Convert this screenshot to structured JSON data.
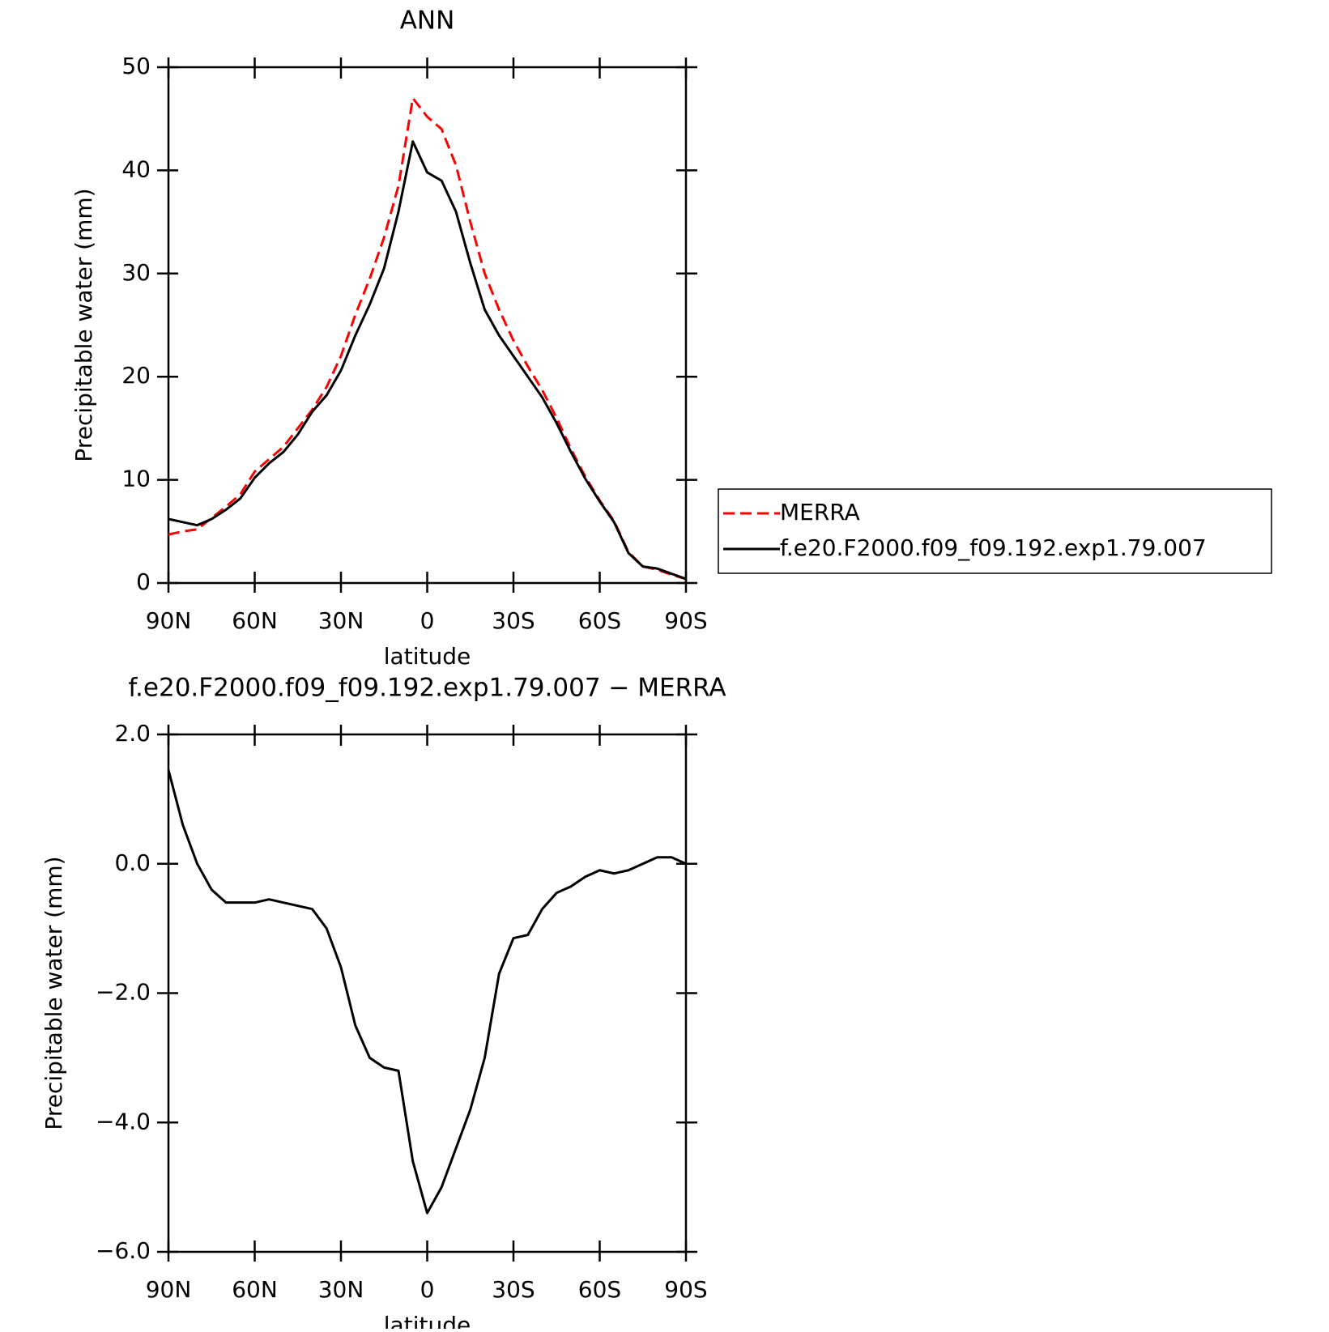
{
  "chart_data": [
    {
      "type": "line",
      "title": "ANN",
      "xlabel": "latitude",
      "ylabel": "Precipitable water (mm)",
      "x": [
        90,
        85,
        80,
        75,
        70,
        65,
        60,
        55,
        50,
        45,
        40,
        35,
        30,
        25,
        20,
        15,
        10,
        5,
        0,
        -5,
        -10,
        -15,
        -20,
        -25,
        -30,
        -35,
        -40,
        -45,
        -50,
        -55,
        -60,
        -65,
        -70,
        -75,
        -80,
        -85,
        -90
      ],
      "xlim": [
        90,
        -90
      ],
      "xticks": [
        {
          "value": 90,
          "label": "90N"
        },
        {
          "value": 60,
          "label": "60N"
        },
        {
          "value": 30,
          "label": "30N"
        },
        0,
        {
          "value": -30,
          "label": "30S"
        },
        {
          "value": -60,
          "label": "60S"
        },
        {
          "value": -90,
          "label": "90S"
        }
      ],
      "ylim": [
        0,
        50
      ],
      "yticks": [
        0,
        10,
        20,
        30,
        40,
        50
      ],
      "legend": "right",
      "series": [
        {
          "name": "MERRA",
          "color": "#ff0000",
          "dashed": true,
          "values": [
            4.7,
            5.0,
            5.2,
            6.3,
            7.4,
            8.6,
            10.8,
            12,
            13.2,
            15,
            16.8,
            19,
            22,
            26,
            29.5,
            33.5,
            38.5,
            47,
            45.2,
            44,
            40.5,
            35,
            30,
            26.5,
            23.5,
            21,
            18.7,
            16,
            13,
            10.3,
            8,
            6,
            3,
            1.6,
            1.3,
            0.8,
            0.4
          ]
        },
        {
          "name": "f.e20.F2000.f09_f09.192.exp1.79.007",
          "color": "#000000",
          "dashed": false,
          "values": [
            6.2,
            5.9,
            5.6,
            6.2,
            7.1,
            8.2,
            10.2,
            11.6,
            12.7,
            14.4,
            16.6,
            18.2,
            20.6,
            24,
            27,
            30.5,
            36,
            42.8,
            39.8,
            39,
            36,
            31,
            26.5,
            24,
            22,
            20,
            18,
            15.5,
            12.7,
            10.1,
            7.9,
            5.9,
            2.9,
            1.6,
            1.4,
            0.9,
            0.4
          ]
        }
      ]
    },
    {
      "type": "line",
      "title": "f.e20.F2000.f09_f09.192.exp1.79.007 − MERRA",
      "xlabel": "latitude",
      "ylabel": "Precipitable water (mm)",
      "x": [
        90,
        85,
        80,
        75,
        70,
        65,
        60,
        55,
        50,
        45,
        40,
        35,
        30,
        25,
        20,
        15,
        10,
        5,
        0,
        -5,
        -10,
        -15,
        -20,
        -25,
        -30,
        -35,
        -40,
        -45,
        -50,
        -55,
        -60,
        -65,
        -70,
        -75,
        -80,
        -85,
        -90
      ],
      "xlim": [
        90,
        -90
      ],
      "xticks": [
        {
          "value": 90,
          "label": "90N"
        },
        {
          "value": 60,
          "label": "60N"
        },
        {
          "value": 30,
          "label": "30N"
        },
        0,
        {
          "value": -30,
          "label": "30S"
        },
        {
          "value": -60,
          "label": "60S"
        },
        {
          "value": -90,
          "label": "90S"
        }
      ],
      "ylim": [
        -6,
        2
      ],
      "yticks": [
        {
          "value": -6,
          "label": "−6.0"
        },
        {
          "value": -4,
          "label": "−4.0"
        },
        {
          "value": -2,
          "label": "−2.0"
        },
        {
          "value": 0,
          "label": "0.0"
        },
        {
          "value": 2,
          "label": "2.0"
        }
      ],
      "series": [
        {
          "color": "#000000",
          "dashed": false,
          "values": [
            1.45,
            0.6,
            0.0,
            -0.4,
            -0.6,
            -0.6,
            -0.6,
            -0.55,
            -0.6,
            -0.65,
            -0.7,
            -1.0,
            -1.6,
            -2.5,
            -3.0,
            -3.15,
            -3.2,
            -4.6,
            -5.4,
            -5.0,
            -4.4,
            -3.8,
            -3.0,
            -1.7,
            -1.15,
            -1.1,
            -0.7,
            -0.45,
            -0.35,
            -0.2,
            -0.1,
            -0.15,
            -0.1,
            0.0,
            0.1,
            0.1,
            0.0
          ]
        }
      ]
    }
  ]
}
